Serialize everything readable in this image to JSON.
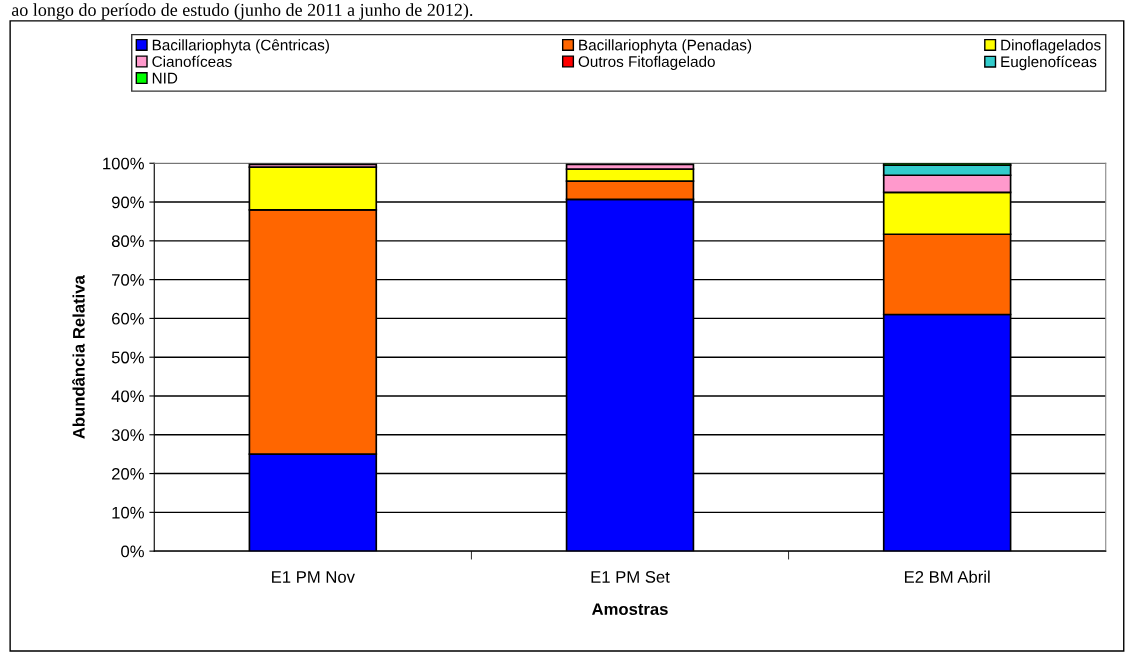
{
  "chart_data": {
    "type": "bar",
    "stacked": true,
    "xlabel": "Amostras",
    "ylabel": "Abundância Relativa",
    "annotations": [
      "ao longo do período de estudo (junho de 2011 a junho de 2012)."
    ],
    "categories": [
      "E1 PM Nov",
      "E1 PM Set",
      "E2 BM Abril"
    ],
    "series": [
      {
        "name": "Bacillariophyta (Cêntricas)",
        "color": "#0000ff",
        "values": [
          25,
          90.7,
          61
        ]
      },
      {
        "name": "Bacillariophyta (Penadas)",
        "color": "#ff6600",
        "values": [
          63,
          4.7,
          20.7
        ]
      },
      {
        "name": "Dinoflagelados",
        "color": "#ffff00",
        "values": [
          11,
          3.1,
          10.8
        ]
      },
      {
        "name": "Cianofíceas",
        "color": "#ff99cc",
        "values": [
          0.7,
          1.2,
          4.4
        ]
      },
      {
        "name": "Outros Fitoflagelado",
        "color": "#ff0000",
        "values": [
          null,
          null,
          null
        ]
      },
      {
        "name": "Euglenofíceas",
        "color": "#33cccc",
        "values": [
          null,
          null,
          2.6
        ]
      },
      {
        "name": "NID",
        "color": "#00ff00",
        "values": [
          null,
          null,
          0.5
        ]
      }
    ],
    "ylim": [
      0,
      100
    ],
    "yticks": [
      {
        "value": 0,
        "label": "0%"
      },
      {
        "value": 10,
        "label": "10%"
      },
      {
        "value": 20,
        "label": "20%"
      },
      {
        "value": 30,
        "label": "30%"
      },
      {
        "value": 40,
        "label": "40%"
      },
      {
        "value": 50,
        "label": "50%"
      },
      {
        "value": 60,
        "label": "60%"
      },
      {
        "value": 70,
        "label": "70%"
      },
      {
        "value": 80,
        "label": "80%"
      },
      {
        "value": 90,
        "label": "90%"
      },
      {
        "value": 100,
        "label": "100%"
      }
    ],
    "grid": "y",
    "legend": "top"
  }
}
